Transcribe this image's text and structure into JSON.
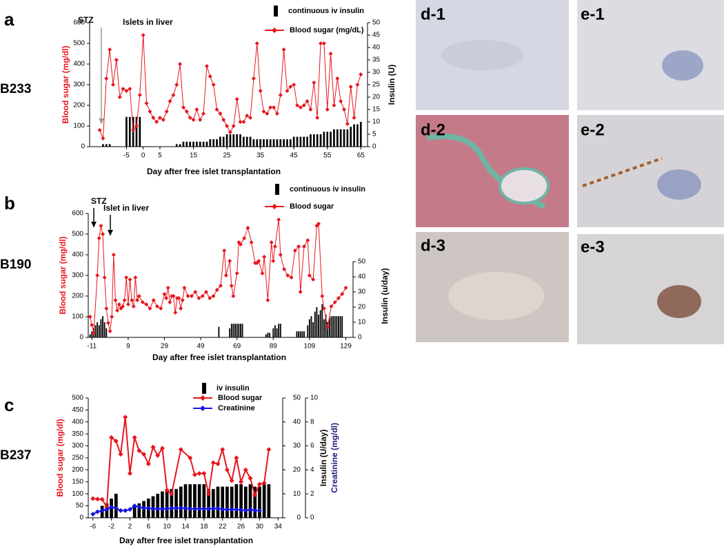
{
  "chart_data": [
    {
      "type": "line",
      "panel": "a",
      "subject": "B233",
      "x_label": "Day after free islet transplantation",
      "y_label": "Blood sugar (mg/dl)",
      "y2_label": "Insulin (U)",
      "annotations": [
        "STZ",
        "Islets in liver"
      ],
      "xlim": [
        -16,
        67
      ],
      "xticks": [
        -5,
        0,
        5,
        15,
        25,
        35,
        45,
        55,
        65
      ],
      "ylim": [
        0,
        600
      ],
      "yticks": [
        0,
        100,
        200,
        300,
        400,
        500,
        600
      ],
      "y2lim": [
        0,
        50
      ],
      "y2ticks": [
        0,
        5,
        10,
        15,
        20,
        25,
        30,
        35,
        40,
        45,
        50
      ],
      "series": [
        {
          "name": "continuous iv insulin",
          "type": "bar",
          "axis": "y2",
          "color": "#000000",
          "x": [
            -12,
            -11,
            -10,
            -5,
            -4,
            -3,
            -2,
            -1,
            10,
            11,
            12,
            13,
            14,
            15,
            16,
            17,
            18,
            19,
            20,
            21,
            22,
            23,
            24,
            25,
            26,
            27,
            28,
            29,
            30,
            31,
            32,
            33,
            34,
            35,
            36,
            37,
            38,
            39,
            40,
            41,
            42,
            43,
            44,
            45,
            46,
            47,
            48,
            49,
            50,
            51,
            52,
            53,
            54,
            55,
            56,
            57,
            58,
            59,
            60,
            61,
            62,
            63,
            64,
            65
          ],
          "values": [
            1,
            1,
            1,
            12,
            12,
            12,
            12,
            12,
            1,
            1,
            2,
            2,
            2,
            2,
            2,
            2,
            2,
            2,
            3,
            3,
            3,
            4,
            4,
            5,
            5,
            5,
            5,
            5,
            4,
            4,
            4,
            3,
            3,
            3,
            3,
            3,
            3,
            3,
            3,
            3,
            3,
            3,
            3,
            4,
            4,
            4,
            4,
            4,
            5,
            5,
            5,
            5,
            6,
            6,
            6,
            7,
            7,
            7,
            7,
            7,
            8,
            9,
            9,
            10
          ]
        },
        {
          "name": "Blood sugar (mg/dL)",
          "type": "line",
          "color": "#e8141b",
          "x": [
            -13,
            -12,
            -11,
            -10,
            -9,
            -8,
            -7,
            -6,
            -5,
            -4,
            -3,
            -2,
            -1,
            0,
            1,
            2,
            3,
            4,
            5,
            6,
            7,
            8,
            9,
            10,
            11,
            12,
            13,
            14,
            15,
            16,
            17,
            18,
            19,
            20,
            21,
            22,
            23,
            24,
            25,
            26,
            27,
            28,
            29,
            30,
            31,
            32,
            33,
            34,
            35,
            36,
            37,
            38,
            39,
            40,
            41,
            42,
            43,
            44,
            45,
            46,
            47,
            48,
            49,
            50,
            51,
            52,
            53,
            54,
            55,
            56,
            57,
            58,
            59,
            60,
            61,
            62,
            63,
            64,
            65
          ],
          "values": [
            80,
            40,
            330,
            470,
            300,
            420,
            240,
            280,
            270,
            280,
            80,
            100,
            250,
            540,
            210,
            170,
            140,
            120,
            140,
            130,
            170,
            220,
            250,
            300,
            400,
            190,
            170,
            140,
            130,
            180,
            130,
            160,
            390,
            340,
            300,
            180,
            160,
            130,
            100,
            70,
            100,
            230,
            120,
            120,
            150,
            140,
            330,
            500,
            270,
            170,
            160,
            190,
            190,
            160,
            250,
            470,
            270,
            290,
            300,
            200,
            190,
            200,
            220,
            180,
            310,
            140,
            500,
            500,
            180,
            450,
            200,
            330,
            220,
            180,
            110,
            290,
            140,
            300,
            350
          ]
        }
      ]
    },
    {
      "type": "line",
      "panel": "b",
      "subject": "B190",
      "x_label": "Day after free islet transplantation",
      "y_label": "Blood sugar (mg/dl)",
      "y2_label": "Insulin (u/day)",
      "annotations": [
        "STZ",
        "Islet in liver"
      ],
      "xlim": [
        -13,
        133
      ],
      "xticks": [
        -11,
        9,
        29,
        49,
        69,
        89,
        109,
        129
      ],
      "ylim": [
        0,
        600
      ],
      "yticks": [
        0,
        100,
        200,
        300,
        400,
        500,
        600
      ],
      "y2lim": [
        0,
        50
      ],
      "y2ticks": [
        0,
        10,
        20,
        30,
        40,
        50
      ],
      "series": [
        {
          "name": "continuous iv insulin",
          "type": "bar",
          "axis": "y2",
          "color": "#000000",
          "x": [
            -12,
            -11,
            -10,
            -9,
            -8,
            -7,
            -6,
            -5,
            -4,
            -3,
            59,
            65,
            66,
            67,
            68,
            69,
            70,
            71,
            72,
            85,
            86,
            87,
            89,
            90,
            91,
            92,
            93,
            102,
            103,
            104,
            105,
            106,
            108,
            109,
            110,
            111,
            112,
            113,
            114,
            115,
            116,
            117,
            118,
            119,
            120,
            121,
            122,
            123,
            124,
            125,
            126,
            127
          ],
          "values": [
            2,
            4,
            6,
            8,
            10,
            8,
            12,
            14,
            10,
            6,
            7,
            6,
            9,
            9,
            9,
            9,
            9,
            9,
            9,
            2,
            3,
            3,
            6,
            8,
            6,
            9,
            9,
            4,
            4,
            4,
            4,
            4,
            8,
            12,
            14,
            10,
            17,
            20,
            15,
            18,
            22,
            12,
            15,
            10,
            13,
            14,
            14,
            14,
            14,
            14,
            14,
            14
          ]
        },
        {
          "name": "Blood sugar",
          "type": "line",
          "color": "#e8141b",
          "x": [
            -12,
            -11,
            -10,
            -8,
            -7,
            -6,
            -5,
            -4,
            -3,
            -2,
            -1,
            0,
            1,
            2,
            3,
            4,
            5,
            6,
            7,
            8,
            9,
            10,
            11,
            12,
            13,
            14,
            15,
            17,
            19,
            21,
            23,
            25,
            27,
            29,
            30,
            31,
            32,
            33,
            34,
            35,
            36,
            37,
            38,
            39,
            40,
            42,
            44,
            46,
            48,
            50,
            52,
            54,
            56,
            58,
            60,
            62,
            63,
            65,
            66,
            67,
            69,
            70,
            71,
            73,
            75,
            77,
            79,
            80,
            81,
            83,
            84,
            86,
            88,
            89,
            90,
            92,
            93,
            95,
            97,
            99,
            101,
            103,
            104,
            106,
            108,
            109,
            111,
            113,
            114,
            116,
            117,
            119,
            121,
            123,
            125,
            127,
            129
          ],
          "values": [
            100,
            60,
            20,
            300,
            480,
            540,
            500,
            290,
            140,
            70,
            30,
            100,
            400,
            180,
            130,
            160,
            140,
            150,
            180,
            290,
            160,
            280,
            180,
            150,
            290,
            180,
            200,
            170,
            160,
            140,
            180,
            150,
            140,
            210,
            190,
            240,
            170,
            200,
            200,
            120,
            190,
            190,
            140,
            180,
            240,
            200,
            200,
            220,
            190,
            200,
            220,
            190,
            200,
            230,
            250,
            420,
            300,
            370,
            250,
            200,
            310,
            460,
            450,
            480,
            530,
            460,
            360,
            360,
            370,
            310,
            390,
            180,
            460,
            370,
            440,
            570,
            400,
            330,
            300,
            290,
            420,
            440,
            220,
            440,
            470,
            300,
            280,
            540,
            550,
            200,
            140,
            50,
            150,
            170,
            190,
            210,
            240
          ]
        }
      ]
    },
    {
      "type": "line",
      "panel": "c",
      "subject": "B237",
      "x_label": "Day after free islet transplantation",
      "y_label": "Blood sugar (mg/dl)",
      "y2_label": "Insulin (U/day)",
      "y3_label": "Creatinine (mg/dl)",
      "xlim": [
        -7,
        35
      ],
      "xticks": [
        -6,
        -2,
        2,
        6,
        10,
        14,
        18,
        22,
        26,
        30,
        34
      ],
      "ylim": [
        0,
        500
      ],
      "yticks": [
        0,
        50,
        100,
        150,
        200,
        250,
        300,
        350,
        400,
        450,
        500
      ],
      "y2lim": [
        0,
        50
      ],
      "y2ticks": [
        0,
        10,
        20,
        30,
        40,
        50
      ],
      "y3lim": [
        0,
        10
      ],
      "y3ticks": [
        0,
        2,
        4,
        6,
        8,
        10
      ],
      "series": [
        {
          "name": "iv insulin",
          "type": "bar",
          "axis": "y2",
          "color": "#000000",
          "x": [
            -4,
            -3,
            -2,
            -1,
            3,
            4,
            5,
            6,
            7,
            8,
            9,
            10,
            11,
            12,
            13,
            14,
            15,
            16,
            17,
            18,
            19,
            20,
            21,
            22,
            23,
            24,
            25,
            26,
            27,
            28,
            29,
            30,
            31,
            32
          ],
          "values": [
            5,
            6,
            8,
            10,
            5,
            6,
            7,
            8,
            9,
            10,
            11,
            12,
            12,
            12,
            13,
            14,
            14,
            14,
            14,
            14,
            12,
            12,
            13,
            13,
            13,
            13,
            14,
            14,
            13,
            14,
            13,
            13,
            14,
            14
          ]
        },
        {
          "name": "Blood sugar",
          "type": "line",
          "color": "#e8141b",
          "x": [
            -6,
            -5,
            -4,
            -3,
            -2,
            -1,
            0,
            1,
            2,
            3,
            4,
            5,
            6,
            7,
            8,
            9,
            10,
            11,
            13,
            15,
            16,
            17,
            18,
            19,
            20,
            21,
            22,
            23,
            24,
            25,
            26,
            27,
            28,
            29,
            30,
            31,
            32
          ],
          "values": [
            80,
            78,
            77,
            45,
            335,
            320,
            265,
            420,
            185,
            335,
            280,
            265,
            225,
            295,
            260,
            290,
            115,
            100,
            285,
            250,
            180,
            185,
            185,
            100,
            230,
            225,
            285,
            200,
            155,
            250,
            150,
            200,
            165,
            95,
            140,
            145,
            285
          ]
        },
        {
          "name": "Creatinine",
          "type": "line",
          "axis": "y3",
          "color": "#1414e6",
          "x": [
            -6,
            -5,
            -4,
            -3,
            -2,
            -1,
            0,
            1,
            2,
            3,
            4,
            5,
            6,
            7,
            8,
            9,
            10,
            11,
            12,
            13,
            14,
            15,
            16,
            17,
            18,
            19,
            20,
            21,
            22,
            23,
            24,
            25,
            26,
            27,
            28,
            29,
            30
          ],
          "values": [
            0.3,
            0.5,
            0.6,
            0.7,
            0.9,
            0.8,
            0.6,
            0.6,
            0.7,
            1.0,
            0.9,
            0.8,
            0.8,
            0.75,
            0.75,
            0.75,
            0.75,
            0.8,
            0.8,
            0.8,
            0.8,
            0.75,
            0.75,
            0.75,
            0.75,
            0.75,
            0.75,
            0.8,
            0.7,
            0.7,
            0.7,
            0.7,
            0.65,
            0.6,
            0.7,
            0.6,
            0.6
          ]
        }
      ]
    }
  ],
  "images": [
    {
      "label": "d-1"
    },
    {
      "label": "e-1"
    },
    {
      "label": "d-2"
    },
    {
      "label": "e-2"
    },
    {
      "label": "d-3"
    },
    {
      "label": "e-3"
    }
  ]
}
